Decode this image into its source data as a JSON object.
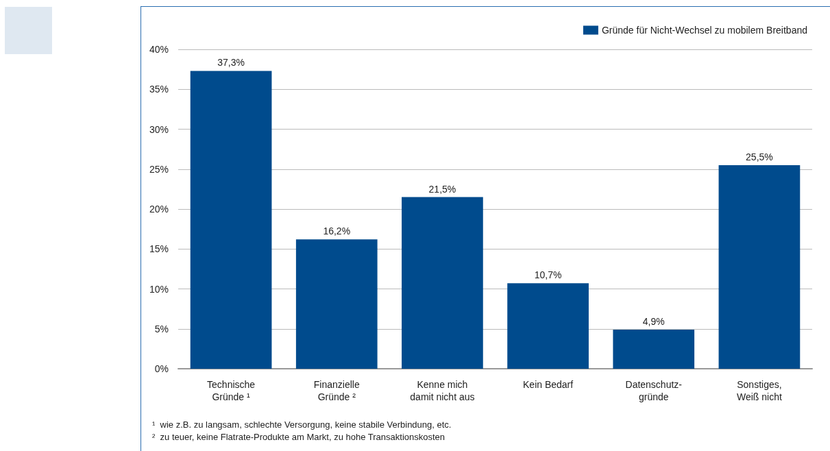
{
  "chart_data": {
    "type": "bar",
    "categories": [
      "Technische\nGründe ¹",
      "Finanzielle\nGründe ²",
      "Kenne mich\ndamit nicht aus",
      "Kein Bedarf",
      "Datenschutz-\ngründe",
      "Sonstiges,\nWeiß nicht"
    ],
    "series": [
      {
        "name": "Gründe für Nicht-Wechsel zu mobilem Breitband",
        "color": "#004b8d",
        "values": [
          37.3,
          16.2,
          21.5,
          10.7,
          4.9,
          25.5
        ],
        "value_labels": [
          "37,3%",
          "16,2%",
          "21,5%",
          "10,7%",
          "4,9%",
          "25,5%"
        ]
      }
    ],
    "ylim": [
      0,
      40
    ],
    "yticks": [
      {
        "value": 0,
        "label": "0%"
      },
      {
        "value": 5,
        "label": "5%"
      },
      {
        "value": 10,
        "label": "10%"
      },
      {
        "value": 15,
        "label": "15%"
      },
      {
        "value": 20,
        "label": "20%"
      },
      {
        "value": 25,
        "label": "25%"
      },
      {
        "value": 30,
        "label": "30%"
      },
      {
        "value": 35,
        "label": "35%"
      },
      {
        "value": 40,
        "label": "40%"
      }
    ],
    "grid": "y",
    "legend": "top right",
    "annotations": [
      "¹  wie z.B. zu langsam, schlechte Versorgung, keine stabile Verbindung, etc.",
      "²  zu teuer, keine Flatrate-Produkte am Markt, zu hohe Transaktionskosten"
    ]
  }
}
